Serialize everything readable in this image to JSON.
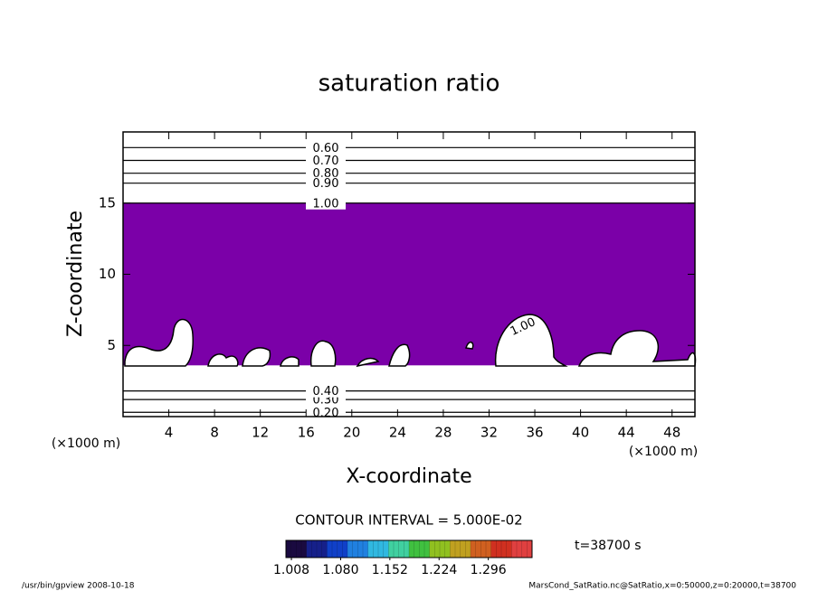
{
  "chart_data": {
    "type": "contour",
    "title": "saturation ratio",
    "xlabel": "X-coordinate",
    "ylabel": "Z-coordinate",
    "x_unit": "(×1000 m)",
    "y_unit": "(×1000 m)",
    "xlim": [
      0,
      50
    ],
    "ylim": [
      0,
      20
    ],
    "xticks": [
      4,
      8,
      12,
      16,
      20,
      24,
      28,
      32,
      36,
      40,
      44,
      48
    ],
    "yticks": [
      5,
      10,
      15
    ],
    "levels": [
      0.2,
      0.3,
      0.4,
      0.6,
      0.7,
      0.8,
      0.9,
      1.0
    ],
    "level_labels": [
      "0.20",
      "0.30",
      "0.40",
      "0.60",
      "0.70",
      "0.80",
      "0.90",
      "1.00"
    ],
    "level_z": [
      0.3,
      1.2,
      1.8,
      18.9,
      18.0,
      17.1,
      16.4,
      15.0
    ],
    "shaded_zlim": [
      3.6,
      15.0
    ],
    "shade_color": "#7b00a8",
    "contour_interval": "CONTOUR INTERVAL = 5.000E-02",
    "colorbar": {
      "clim": [
        1.0,
        1.36
      ],
      "ticks": [
        {
          "value": 1.008,
          "label": "1.008"
        },
        {
          "value": 1.08,
          "label": "1.080"
        },
        {
          "value": 1.152,
          "label": "1.152"
        },
        {
          "value": 1.224,
          "label": "1.224"
        },
        {
          "value": 1.296,
          "label": "1.296"
        }
      ],
      "colors": [
        "#1a0a40",
        "#16208a",
        "#1040c8",
        "#2080e0",
        "#30b8e0",
        "#40d0a0",
        "#40c040",
        "#90c020",
        "#c0a020",
        "#d06020",
        "#d03020",
        "#e04040"
      ]
    },
    "time_label": "t=38700 s",
    "footer_left": "/usr/bin/gpview   2008-10-18",
    "footer_right": "MarsCond_SatRatio.nc@SatRatio,x=0:50000,z=0:20000,t=38700"
  }
}
